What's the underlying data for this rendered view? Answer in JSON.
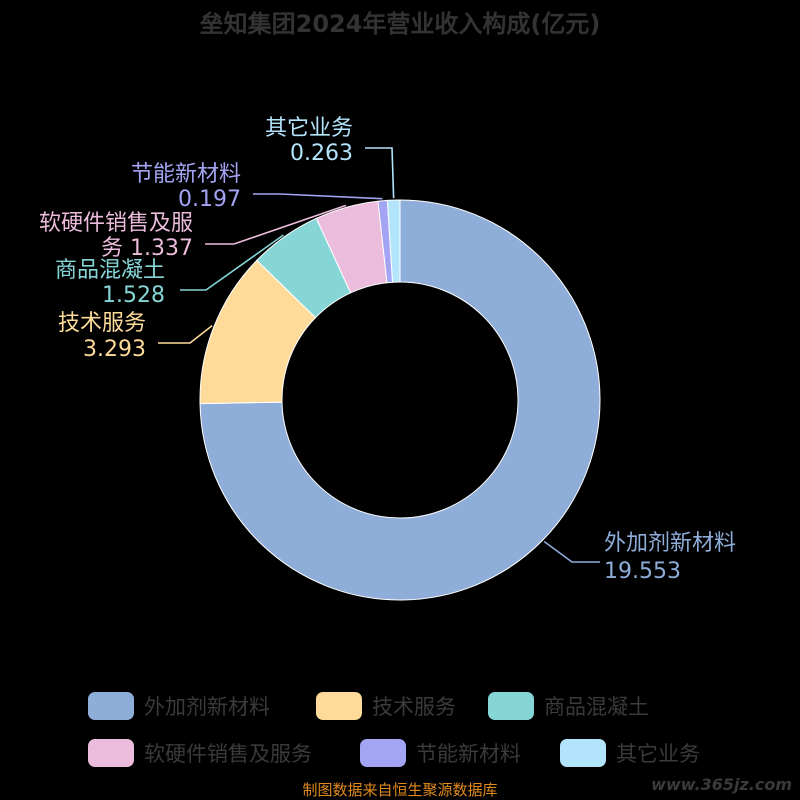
{
  "chart_data": {
    "type": "pie",
    "title": "垒知集团2024年营业收入构成(亿元)",
    "categories": [
      "外加剂新材料",
      "技术服务",
      "商品混凝土",
      "软硬件销售及服务",
      "节能新材料",
      "其它业务"
    ],
    "values": [
      19.553,
      3.293,
      1.528,
      1.337,
      0.197,
      0.263
    ],
    "value_labels": [
      "19.553",
      "3.293",
      "1.528",
      "1.337",
      "0.197",
      "0.263"
    ],
    "colors": [
      "#8eadd9",
      "#ffdb9a",
      "#86d6d8",
      "#ebbcdb",
      "#a4a4f4",
      "#b2e4fb"
    ],
    "legend_position": "bottom",
    "donut": true
  },
  "footer": {
    "source": "制图数据来自恒生聚源数据库",
    "watermark": "www.365jz.com"
  }
}
